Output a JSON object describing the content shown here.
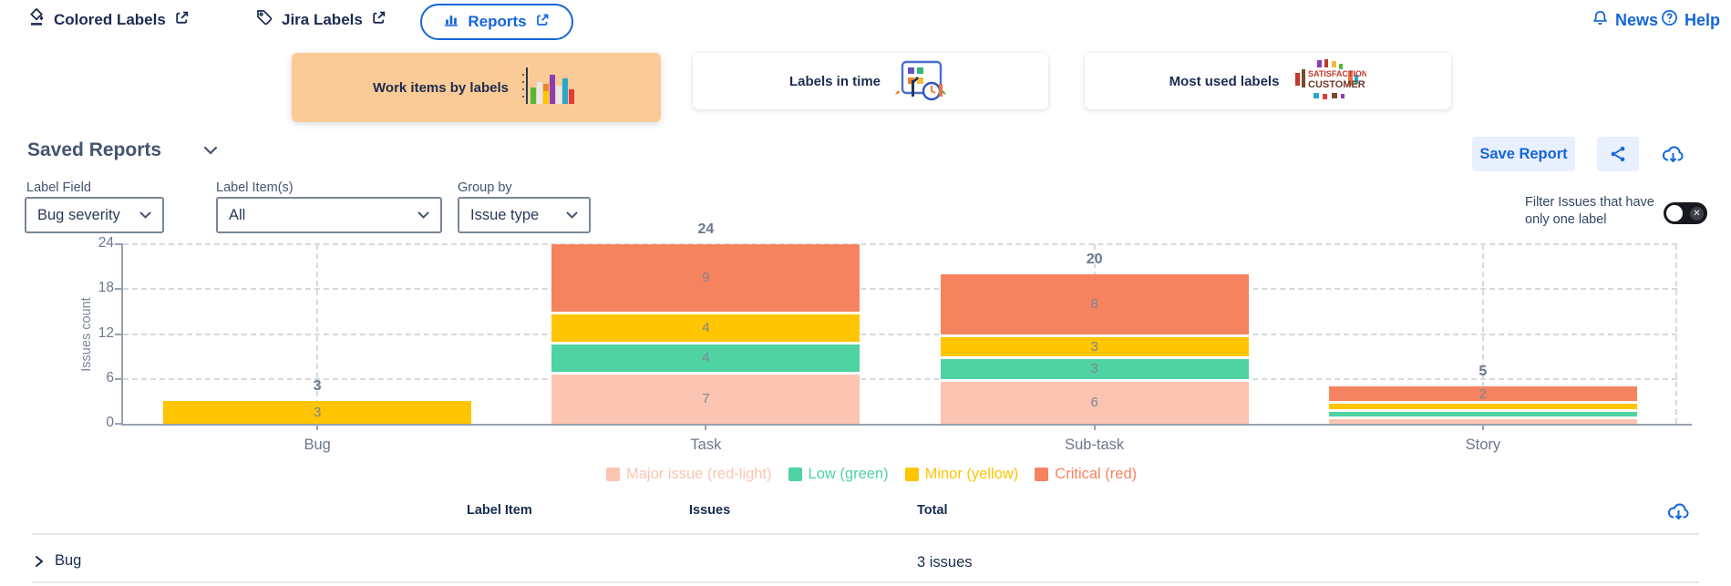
{
  "topbar": {
    "colored_labels": "Colored Labels",
    "jira_labels": "Jira Labels",
    "reports": "Reports",
    "news": "News",
    "help": "Help"
  },
  "cards": [
    {
      "label": "Work items by labels",
      "selected": true
    },
    {
      "label": "Labels in time",
      "selected": false
    },
    {
      "label": "Most used labels",
      "selected": false
    }
  ],
  "saved_reports_label": "Saved Reports",
  "actions": {
    "save_report": "Save Report"
  },
  "filters": {
    "label_field": {
      "label": "Label Field",
      "value": "Bug severity"
    },
    "label_items": {
      "label": "Label Item(s)",
      "value": "All"
    },
    "group_by": {
      "label": "Group by",
      "value": "Issue type"
    }
  },
  "filter_toggle": {
    "label": "Filter Issues that have only one label",
    "state": "off"
  },
  "chart_data": {
    "type": "bar",
    "stacked": true,
    "ylabel": "Issues count",
    "categories": [
      "Bug",
      "Task",
      "Sub-task",
      "Story"
    ],
    "series": [
      {
        "name": "Major issue (red-light)",
        "color": "#fbc5b1",
        "values": [
          0,
          7,
          6,
          1
        ]
      },
      {
        "name": "Low (green)",
        "color": "#4fd3a2",
        "values": [
          0,
          4,
          3,
          1
        ]
      },
      {
        "name": "Minor (yellow)",
        "color": "#ffc402",
        "values": [
          3,
          4,
          3,
          1
        ]
      },
      {
        "name": "Critical (red)",
        "color": "#f5835f",
        "values": [
          0,
          9,
          8,
          2
        ]
      }
    ],
    "totals": [
      3,
      24,
      20,
      5
    ],
    "yticks": [
      0,
      6,
      12,
      18,
      24
    ],
    "ylim": [
      0,
      24
    ],
    "grid": "dashed",
    "legend_position": "bottom"
  },
  "table": {
    "headers": [
      "Label Item",
      "Issues",
      "Total"
    ],
    "rows": [
      {
        "label": "Bug",
        "total": "3 issues"
      }
    ]
  },
  "colors": {
    "accent_blue": "#1465db",
    "selected_card_bg": "#facb96",
    "toggle_bg": "#17191e"
  }
}
